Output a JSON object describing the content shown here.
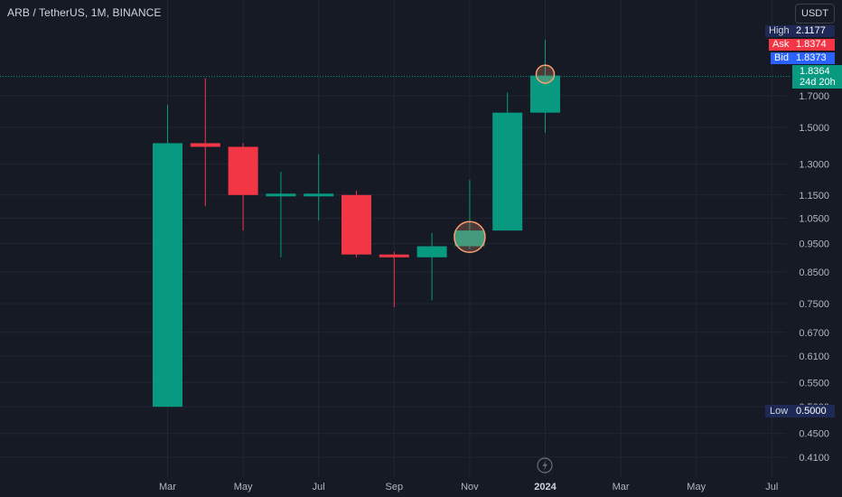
{
  "header": {
    "title": "ARB / TetherUS, 1M, BINANCE",
    "currency": "USDT"
  },
  "quote": {
    "high_label": "High",
    "high_value": "2.1177",
    "ask_label": "Ask",
    "ask_value": "1.8374",
    "bid_label": "Bid",
    "bid_value": "1.8373",
    "last_price": "1.8364",
    "countdown": "24d 20h",
    "low_label": "Low",
    "low_value": "0.5000"
  },
  "colors": {
    "up": "#089981",
    "down": "#f23645",
    "background": "#161a25",
    "grid": "#232632",
    "text": "#b2b5be",
    "high_bg": "#1e2a55",
    "ask_bg": "#f23645",
    "bid_bg": "#2962ff",
    "marker": "#f7a172"
  },
  "chart_data": {
    "type": "candlestick",
    "y_scale": "log",
    "ylim": [
      0.39,
      2.25
    ],
    "x_ticks": [
      "Mar",
      "May",
      "Jul",
      "Sep",
      "Nov",
      "2024",
      "Mar",
      "May",
      "Jul"
    ],
    "y_ticks": [
      "1.7000",
      "1.5000",
      "1.3000",
      "1.1500",
      "1.0500",
      "0.9500",
      "0.8500",
      "0.7500",
      "0.6700",
      "0.6100",
      "0.5500",
      "0.5000",
      "0.4500",
      "0.4100"
    ],
    "candles": [
      {
        "month": "2023-03",
        "open": 0.5,
        "high": 1.64,
        "low": 0.5,
        "close": 1.41
      },
      {
        "month": "2023-04",
        "open": 1.41,
        "high": 1.82,
        "low": 1.1,
        "close": 1.39
      },
      {
        "month": "2023-05",
        "open": 1.39,
        "high": 1.41,
        "low": 1.0,
        "close": 1.15
      },
      {
        "month": "2023-06",
        "open": 1.15,
        "high": 1.26,
        "low": 0.9,
        "close": 1.15
      },
      {
        "month": "2023-07",
        "open": 1.15,
        "high": 1.35,
        "low": 1.04,
        "close": 1.15
      },
      {
        "month": "2023-08",
        "open": 1.15,
        "high": 1.17,
        "low": 0.9,
        "close": 0.91
      },
      {
        "month": "2023-09",
        "open": 0.91,
        "high": 0.92,
        "low": 0.74,
        "close": 0.9
      },
      {
        "month": "2023-10",
        "open": 0.9,
        "high": 0.99,
        "low": 0.76,
        "close": 0.94
      },
      {
        "month": "2023-11",
        "open": 0.94,
        "high": 1.22,
        "low": 0.93,
        "close": 1.0
      },
      {
        "month": "2023-12",
        "open": 1.0,
        "high": 1.72,
        "low": 1.0,
        "close": 1.59
      },
      {
        "month": "2024-01",
        "open": 1.59,
        "high": 2.12,
        "low": 1.47,
        "close": 1.84
      }
    ],
    "markers": [
      {
        "month": "2023-11",
        "price": 0.975
      },
      {
        "month": "2024-01",
        "price": 1.85
      }
    ],
    "current_price": 1.8364
  }
}
